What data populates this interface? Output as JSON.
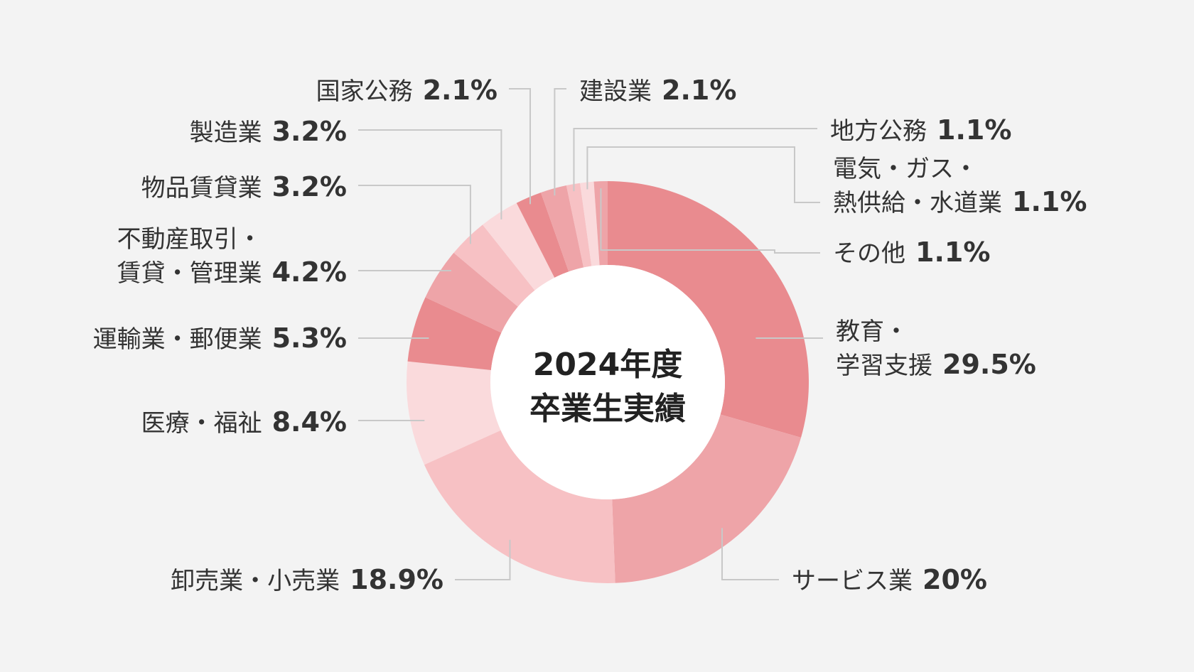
{
  "chart_data": {
    "type": "pie",
    "donut": true,
    "center_label": [
      "2024年度",
      "卒業生実績"
    ],
    "unit": "%",
    "slices": [
      {
        "label_lines": [
          "教育・",
          "学習支援"
        ],
        "value": 29.5,
        "value_text": "29.5%",
        "color": "#e98b8f"
      },
      {
        "label_lines": [
          "サービス業"
        ],
        "value": 20,
        "value_text": "20%",
        "color": "#eea4a8"
      },
      {
        "label_lines": [
          "卸売業・小売業"
        ],
        "value": 18.9,
        "value_text": "18.9%",
        "color": "#f7c1c4"
      },
      {
        "label_lines": [
          "医療・福祉"
        ],
        "value": 8.4,
        "value_text": "8.4%",
        "color": "#fadadc"
      },
      {
        "label_lines": [
          "運輸業・郵便業"
        ],
        "value": 5.3,
        "value_text": "5.3%",
        "color": "#e98b8f"
      },
      {
        "label_lines": [
          "不動産取引・",
          "賃貸・管理業"
        ],
        "value": 4.2,
        "value_text": "4.2%",
        "color": "#eea4a8"
      },
      {
        "label_lines": [
          "物品賃貸業"
        ],
        "value": 3.2,
        "value_text": "3.2%",
        "color": "#f7c1c4"
      },
      {
        "label_lines": [
          "製造業"
        ],
        "value": 3.2,
        "value_text": "3.2%",
        "color": "#fadadc"
      },
      {
        "label_lines": [
          "国家公務"
        ],
        "value": 2.1,
        "value_text": "2.1%",
        "color": "#e98b8f"
      },
      {
        "label_lines": [
          "建設業"
        ],
        "value": 2.1,
        "value_text": "2.1%",
        "color": "#eea4a8"
      },
      {
        "label_lines": [
          "地方公務"
        ],
        "value": 1.1,
        "value_text": "1.1%",
        "color": "#f7c1c4"
      },
      {
        "label_lines": [
          "電気・ガス・",
          "熱供給・水道業"
        ],
        "value": 1.1,
        "value_text": "1.1%",
        "color": "#fadadc"
      },
      {
        "label_lines": [
          "その他"
        ],
        "value": 1.1,
        "value_text": "1.1%",
        "color": "#eea4a8"
      }
    ]
  }
}
